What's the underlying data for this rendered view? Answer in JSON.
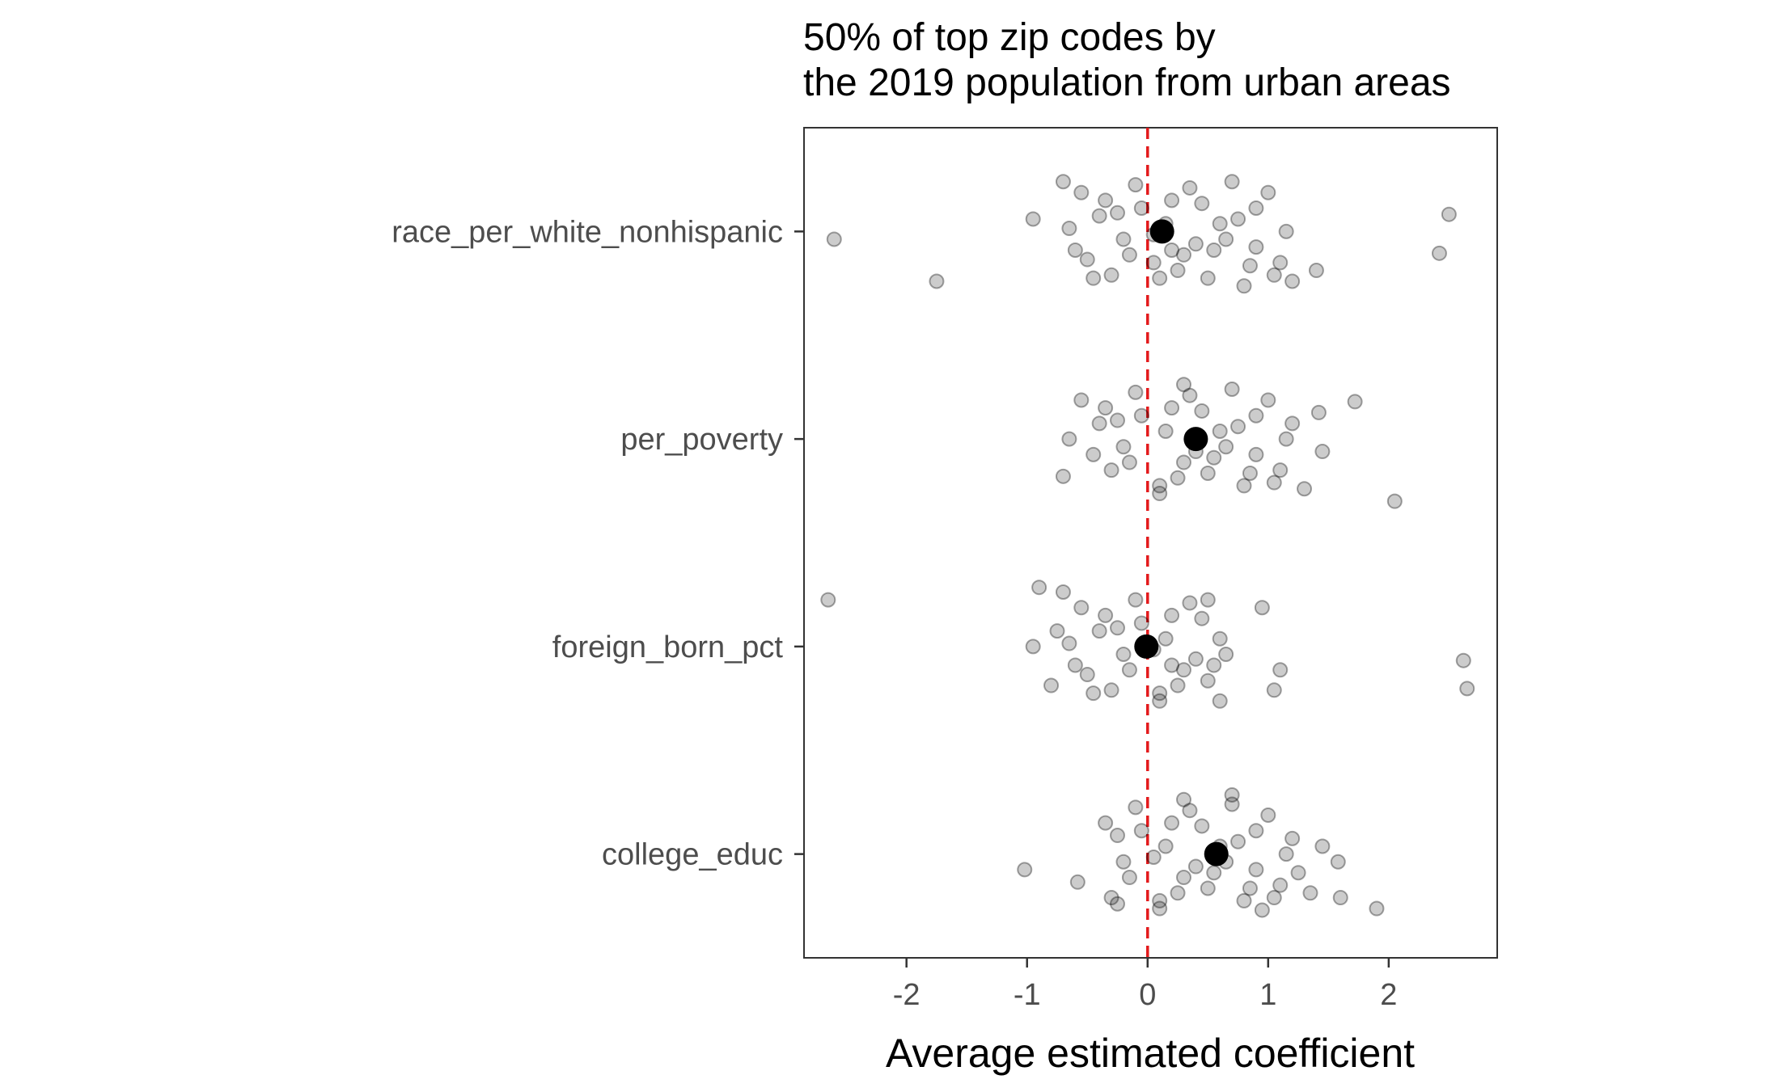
{
  "chart_data": {
    "type": "scatter",
    "title_lines": [
      "50% of top zip codes by",
      "the 2019 population from urban areas"
    ],
    "xlabel": "Average estimated coefficient",
    "ylabel": "",
    "xlim": [
      -2.85,
      2.9
    ],
    "x_ticks": [
      -2,
      -1,
      0,
      1,
      2
    ],
    "x_tick_labels": [
      "-2",
      "-1",
      "0",
      "1",
      "2"
    ],
    "categories": [
      "race_per_white_nonhispanic",
      "per_poverty",
      "foreign_born_pct",
      "college_educ"
    ],
    "reference_line": {
      "x": 0,
      "color": "#e31a1c",
      "style": "dashed"
    },
    "point_color": "#000000",
    "grid": false,
    "legend": "none",
    "means": [
      {
        "category": "race_per_white_nonhispanic",
        "value": 0.12
      },
      {
        "category": "per_poverty",
        "value": 0.4
      },
      {
        "category": "foreign_born_pct",
        "value": -0.01
      },
      {
        "category": "college_educ",
        "value": 0.57
      }
    ],
    "series": [
      {
        "category": "race_per_white_nonhispanic",
        "points": [
          [
            -1.75,
            0.32
          ],
          [
            -2.6,
            0.05
          ],
          [
            2.42,
            0.14
          ],
          [
            2.5,
            -0.11
          ],
          [
            1.4,
            0.25
          ],
          [
            1.2,
            0.32
          ],
          [
            -0.95,
            -0.08
          ],
          [
            -0.7,
            -0.32
          ],
          [
            0.05,
            0.2
          ],
          [
            0.8,
            0.35
          ],
          [
            0.5,
            0.3
          ],
          [
            -0.3,
            0.28
          ],
          [
            -0.5,
            0.18
          ],
          [
            0.3,
            0.15
          ],
          [
            0.9,
            0.1
          ],
          [
            -0.2,
            0.05
          ],
          [
            0.6,
            -0.05
          ],
          [
            -0.4,
            -0.1
          ],
          [
            0.2,
            -0.2
          ],
          [
            1.0,
            -0.25
          ],
          [
            -0.1,
            -0.3
          ],
          [
            0.7,
            -0.32
          ],
          [
            -0.6,
            0.12
          ],
          [
            0.4,
            0.08
          ],
          [
            1.1,
            0.2
          ],
          [
            -0.35,
            -0.2
          ],
          [
            0.15,
            -0.05
          ],
          [
            0.9,
            -0.15
          ],
          [
            -0.55,
            -0.25
          ],
          [
            0.25,
            0.25
          ],
          [
            0.55,
            0.12
          ],
          [
            -0.15,
            0.15
          ],
          [
            0.45,
            -0.18
          ],
          [
            -0.25,
            -0.12
          ],
          [
            0.65,
            0.05
          ],
          [
            -0.45,
            0.3
          ],
          [
            0.35,
            -0.28
          ],
          [
            1.15,
            0.0
          ],
          [
            0.85,
            0.22
          ],
          [
            -0.05,
            -0.15
          ],
          [
            0.05,
            0.02
          ],
          [
            0.75,
            -0.08
          ],
          [
            -0.65,
            -0.02
          ],
          [
            0.1,
            0.3
          ],
          [
            1.05,
            0.28
          ],
          [
            0.2,
            0.12
          ]
        ]
      },
      {
        "category": "per_poverty",
        "points": [
          [
            2.05,
            0.4
          ],
          [
            1.72,
            -0.24
          ],
          [
            1.42,
            -0.17
          ],
          [
            1.45,
            0.08
          ],
          [
            1.3,
            0.32
          ],
          [
            -0.7,
            0.24
          ],
          [
            -0.65,
            0.0
          ],
          [
            -0.45,
            0.1
          ],
          [
            0.1,
            0.35
          ],
          [
            0.8,
            0.3
          ],
          [
            0.5,
            0.22
          ],
          [
            -0.3,
            0.2
          ],
          [
            0.3,
            0.15
          ],
          [
            0.9,
            0.1
          ],
          [
            -0.2,
            0.05
          ],
          [
            0.6,
            -0.05
          ],
          [
            -0.4,
            -0.1
          ],
          [
            0.2,
            -0.2
          ],
          [
            1.0,
            -0.25
          ],
          [
            -0.1,
            -0.3
          ],
          [
            0.7,
            -0.32
          ],
          [
            0.4,
            0.08
          ],
          [
            1.1,
            0.2
          ],
          [
            -0.35,
            -0.2
          ],
          [
            0.15,
            -0.05
          ],
          [
            0.9,
            -0.15
          ],
          [
            -0.55,
            -0.25
          ],
          [
            0.25,
            0.25
          ],
          [
            0.55,
            0.12
          ],
          [
            -0.15,
            0.15
          ],
          [
            0.45,
            -0.18
          ],
          [
            -0.25,
            -0.12
          ],
          [
            0.65,
            0.05
          ],
          [
            0.35,
            -0.28
          ],
          [
            1.15,
            0.0
          ],
          [
            0.85,
            0.22
          ],
          [
            -0.05,
            -0.15
          ],
          [
            0.75,
            -0.08
          ],
          [
            0.1,
            0.3
          ],
          [
            1.05,
            0.28
          ],
          [
            1.2,
            -0.1
          ],
          [
            0.3,
            -0.35
          ]
        ]
      },
      {
        "category": "foreign_born_pct",
        "points": [
          [
            -2.65,
            -0.3
          ],
          [
            2.65,
            0.27
          ],
          [
            2.62,
            0.09
          ],
          [
            1.1,
            0.15
          ],
          [
            1.05,
            0.28
          ],
          [
            0.95,
            -0.25
          ],
          [
            -0.8,
            0.25
          ],
          [
            -0.95,
            0.0
          ],
          [
            -0.9,
            -0.38
          ],
          [
            0.1,
            0.35
          ],
          [
            0.5,
            0.22
          ],
          [
            -0.3,
            0.28
          ],
          [
            -0.5,
            0.18
          ],
          [
            0.3,
            0.15
          ],
          [
            -0.2,
            0.05
          ],
          [
            0.6,
            -0.05
          ],
          [
            -0.4,
            -0.1
          ],
          [
            0.2,
            -0.2
          ],
          [
            -0.1,
            -0.3
          ],
          [
            -0.6,
            0.12
          ],
          [
            0.4,
            0.08
          ],
          [
            -0.35,
            -0.2
          ],
          [
            0.15,
            -0.05
          ],
          [
            -0.55,
            -0.25
          ],
          [
            0.25,
            0.25
          ],
          [
            0.55,
            0.12
          ],
          [
            -0.15,
            0.15
          ],
          [
            0.45,
            -0.18
          ],
          [
            -0.25,
            -0.12
          ],
          [
            0.65,
            0.05
          ],
          [
            -0.45,
            0.3
          ],
          [
            0.35,
            -0.28
          ],
          [
            -0.05,
            -0.15
          ],
          [
            0.05,
            0.02
          ],
          [
            -0.65,
            -0.02
          ],
          [
            0.1,
            0.3
          ],
          [
            -0.75,
            -0.1
          ],
          [
            0.2,
            0.12
          ],
          [
            -0.7,
            -0.35
          ],
          [
            0.5,
            -0.3
          ],
          [
            0.6,
            0.35
          ]
        ]
      },
      {
        "category": "college_educ",
        "points": [
          [
            -1.02,
            0.1
          ],
          [
            -0.58,
            0.18
          ],
          [
            1.9,
            0.35
          ],
          [
            1.6,
            0.28
          ],
          [
            1.58,
            0.05
          ],
          [
            1.45,
            -0.05
          ],
          [
            1.35,
            0.25
          ],
          [
            0.1,
            0.35
          ],
          [
            0.8,
            0.3
          ],
          [
            0.5,
            0.22
          ],
          [
            -0.3,
            0.28
          ],
          [
            0.3,
            0.15
          ],
          [
            0.9,
            0.1
          ],
          [
            -0.2,
            0.05
          ],
          [
            0.6,
            -0.05
          ],
          [
            0.2,
            -0.2
          ],
          [
            1.0,
            -0.25
          ],
          [
            -0.1,
            -0.3
          ],
          [
            0.7,
            -0.32
          ],
          [
            0.4,
            0.08
          ],
          [
            1.1,
            0.2
          ],
          [
            -0.35,
            -0.2
          ],
          [
            0.15,
            -0.05
          ],
          [
            0.9,
            -0.15
          ],
          [
            0.25,
            0.25
          ],
          [
            0.55,
            0.12
          ],
          [
            -0.15,
            0.15
          ],
          [
            0.45,
            -0.18
          ],
          [
            -0.25,
            -0.12
          ],
          [
            0.65,
            0.05
          ],
          [
            0.35,
            -0.28
          ],
          [
            1.15,
            0.0
          ],
          [
            0.85,
            0.22
          ],
          [
            -0.05,
            -0.15
          ],
          [
            0.05,
            0.02
          ],
          [
            0.75,
            -0.08
          ],
          [
            0.1,
            0.3
          ],
          [
            1.05,
            0.28
          ],
          [
            1.2,
            -0.1
          ],
          [
            0.3,
            -0.35
          ],
          [
            0.7,
            -0.38
          ],
          [
            1.25,
            0.12
          ],
          [
            -0.25,
            0.32
          ],
          [
            0.95,
            0.36
          ]
        ]
      }
    ]
  }
}
